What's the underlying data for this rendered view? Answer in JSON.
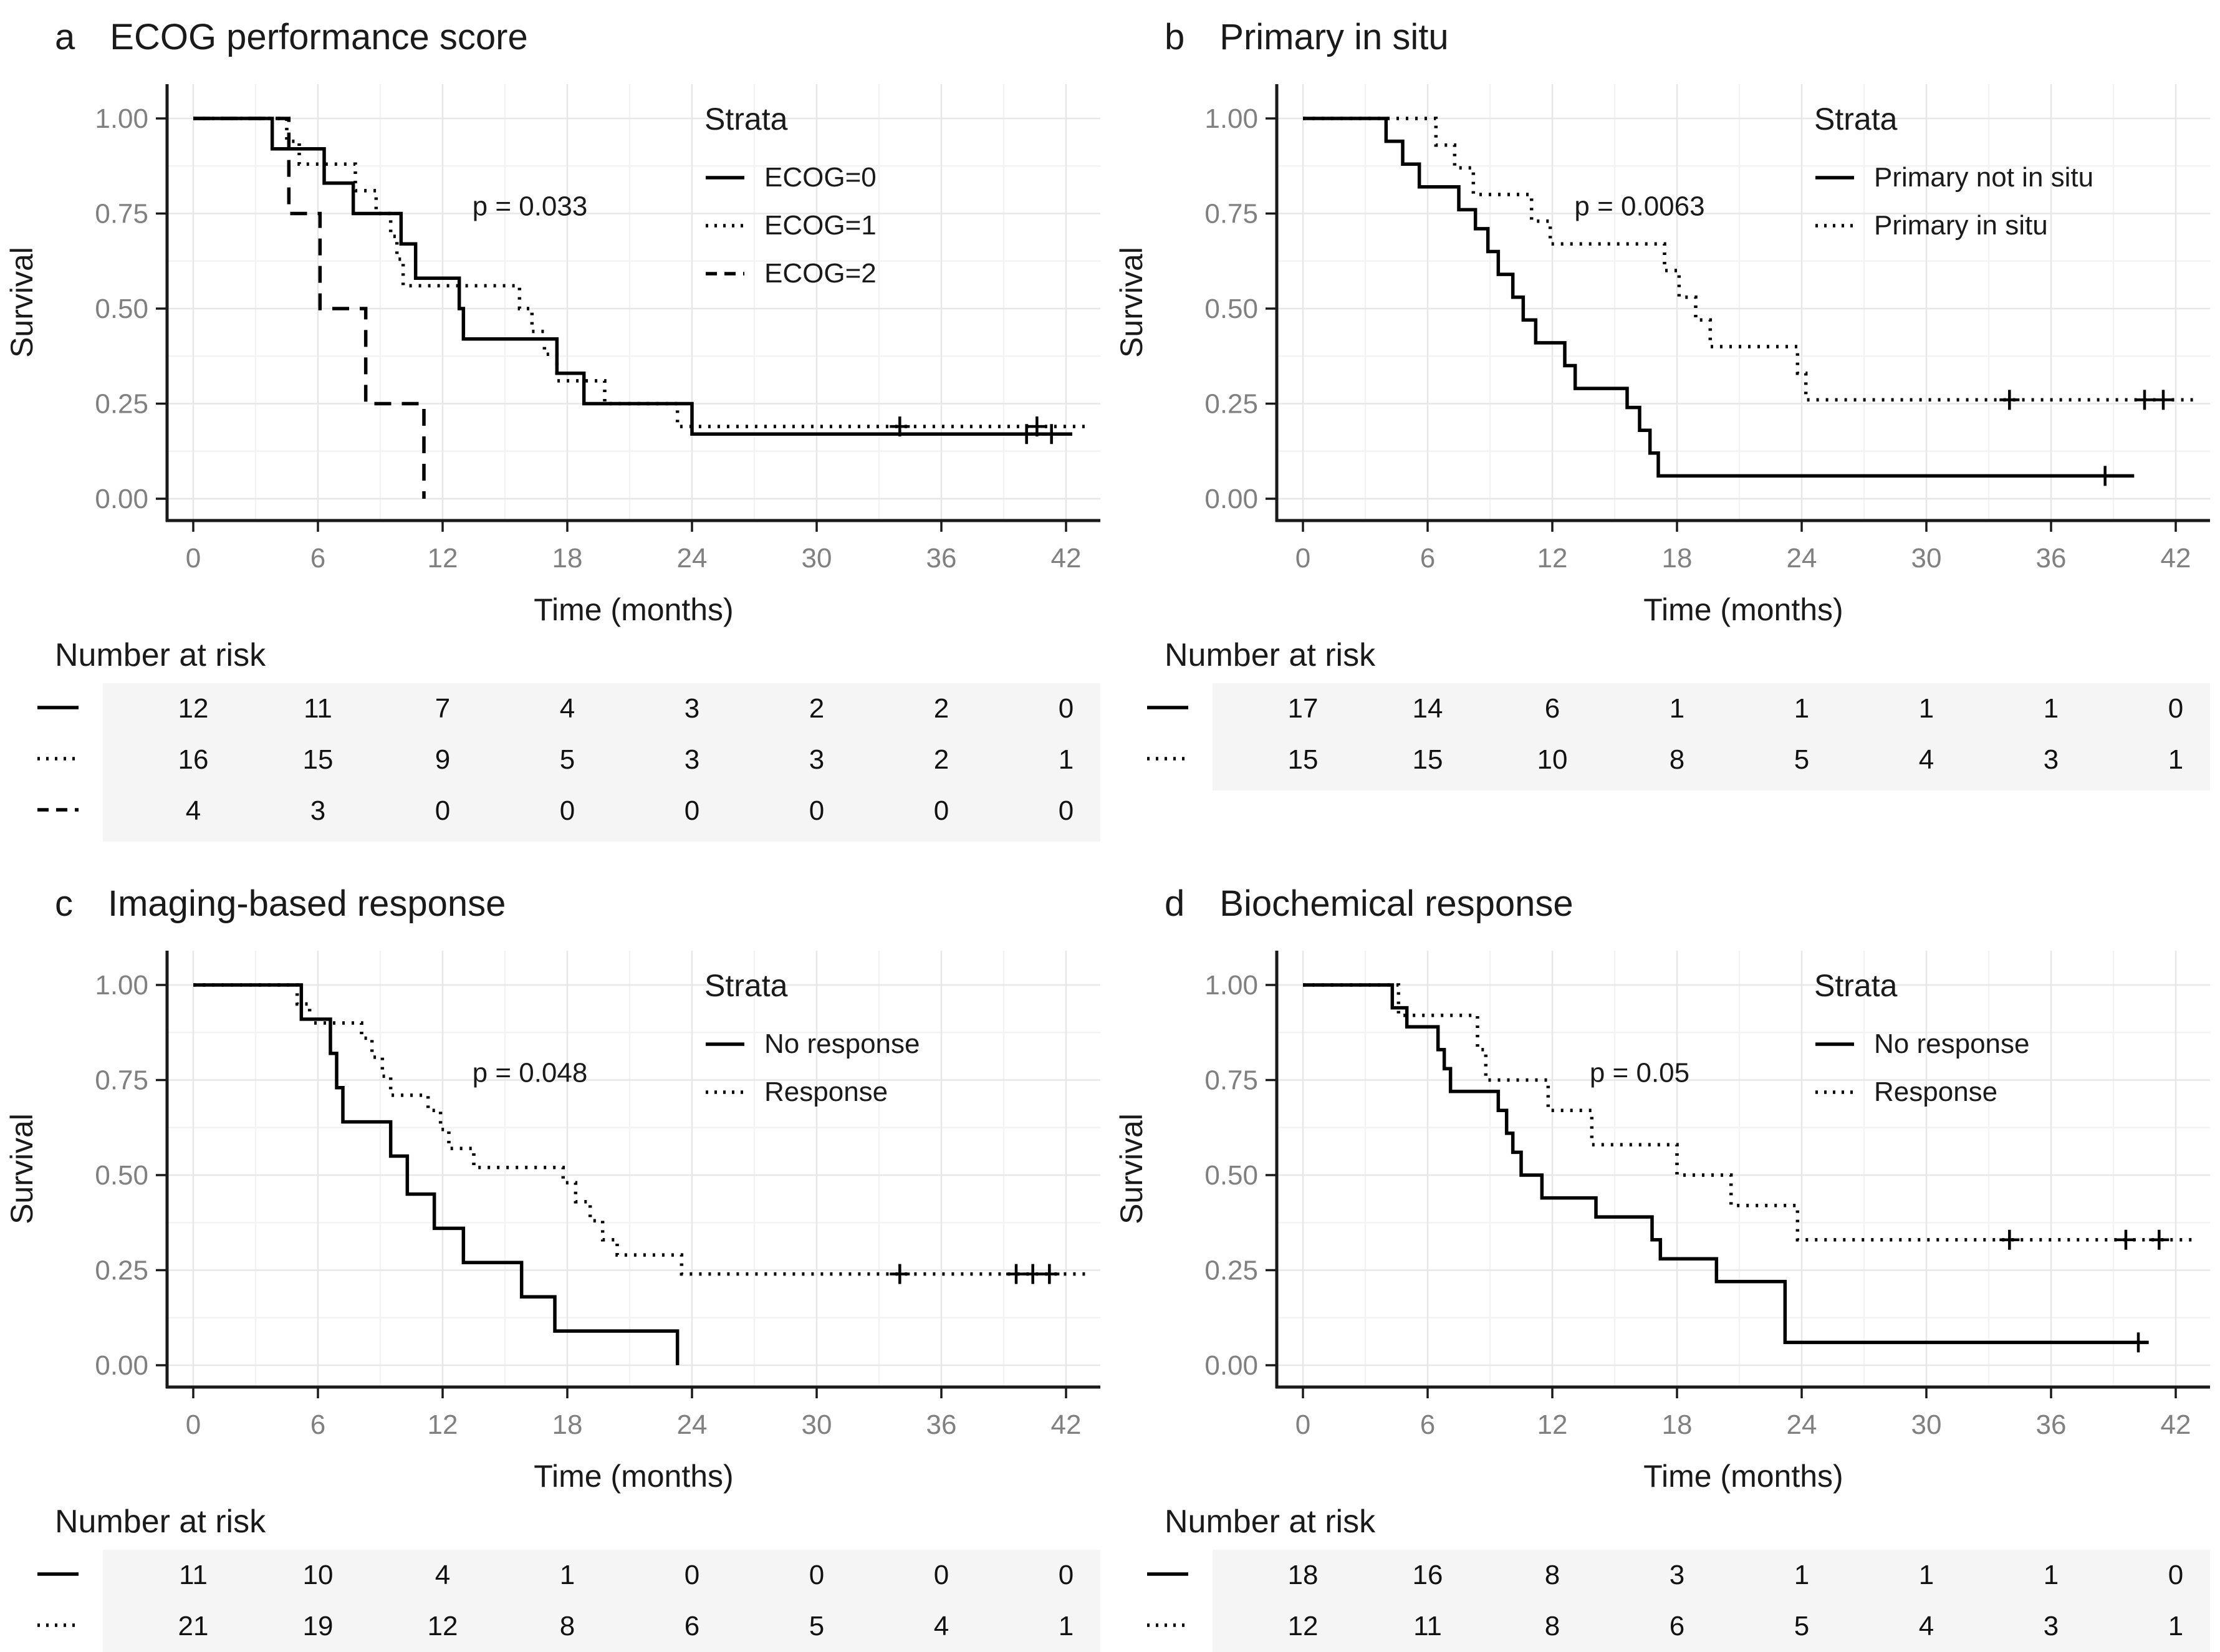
{
  "figure": {
    "y_axis_label": "Survival",
    "x_axis_label": "Time (months)",
    "legend_title": "Strata",
    "risk_header": "Number at risk",
    "x_ticks": [
      0,
      6,
      12,
      18,
      24,
      30,
      36,
      42
    ],
    "y_tick_labels": [
      "1.00",
      "0.75",
      "0.50",
      "0.25",
      "0.00"
    ],
    "y_tick_values": [
      1,
      0.75,
      0.5,
      0.25,
      0
    ],
    "colors": {
      "curve": "#000000",
      "axis": "#1a1a1a",
      "grid_major": "#e7e7e7",
      "grid_minor": "#f3f3f3",
      "tick_label": "#808080",
      "risk_band_bg": "#f5f5f5",
      "text": "#1a1a1a"
    }
  },
  "chart_data": [
    {
      "type": "line",
      "subtype": "kaplan-meier-step",
      "letter": "a",
      "title": "ECOG performance score",
      "p_label": "p = 0.033",
      "xlabel": "Time (months)",
      "ylabel": "Survival",
      "xlim": [
        -1.5,
        43.6
      ],
      "ylim": [
        -0.05,
        1.05
      ],
      "x_ticks": [
        0,
        6,
        12,
        18,
        24,
        30,
        36,
        42
      ],
      "series": [
        {
          "name": "ECOG=0",
          "line": "solid",
          "steps": [
            [
              3.8,
              0.92
            ],
            [
              6.3,
              0.83
            ],
            [
              7.7,
              0.75
            ],
            [
              10.0,
              0.67
            ],
            [
              10.7,
              0.58
            ],
            [
              12.8,
              0.5
            ],
            [
              13.0,
              0.42
            ],
            [
              17.5,
              0.33
            ],
            [
              18.8,
              0.25
            ],
            [
              24.0,
              0.17
            ]
          ],
          "end": 42.3,
          "censors": [
            [
              40.1,
              0.17
            ],
            [
              41.3,
              0.17
            ]
          ],
          "at_risk": [
            12,
            11,
            7,
            4,
            3,
            2,
            2,
            0
          ]
        },
        {
          "name": "ECOG=1",
          "line": "dotted",
          "steps": [
            [
              4.5,
              0.94
            ],
            [
              5.1,
              0.88
            ],
            [
              7.8,
              0.81
            ],
            [
              8.8,
              0.75
            ],
            [
              9.5,
              0.69
            ],
            [
              9.8,
              0.63
            ],
            [
              10.1,
              0.56
            ],
            [
              15.7,
              0.5
            ],
            [
              16.3,
              0.44
            ],
            [
              16.9,
              0.38
            ],
            [
              17.5,
              0.31
            ],
            [
              19.8,
              0.25
            ],
            [
              23.3,
              0.19
            ]
          ],
          "end": 43.0,
          "censors": [
            [
              34.0,
              0.19
            ],
            [
              40.6,
              0.19
            ]
          ],
          "at_risk": [
            16,
            15,
            9,
            5,
            3,
            3,
            2,
            1
          ]
        },
        {
          "name": "ECOG=2",
          "line": "dashed",
          "steps": [
            [
              4.6,
              0.75
            ],
            [
              6.1,
              0.5
            ],
            [
              8.3,
              0.25
            ],
            [
              11.1,
              0.0
            ]
          ],
          "end": 11.1,
          "censors": [],
          "at_risk": [
            4,
            3,
            0,
            0,
            0,
            0,
            0,
            0
          ]
        }
      ]
    },
    {
      "type": "line",
      "subtype": "kaplan-meier-step",
      "letter": "b",
      "title": "Primary in situ",
      "p_label": "p = 0.0063",
      "xlabel": "Time (months)",
      "ylabel": "Survival",
      "xlim": [
        -1.5,
        43.6
      ],
      "ylim": [
        -0.05,
        1.05
      ],
      "x_ticks": [
        0,
        6,
        12,
        18,
        24,
        30,
        36,
        42
      ],
      "series": [
        {
          "name": "Primary not in situ",
          "line": "solid",
          "steps": [
            [
              4.0,
              0.94
            ],
            [
              4.8,
              0.88
            ],
            [
              5.6,
              0.82
            ],
            [
              7.5,
              0.76
            ],
            [
              8.3,
              0.71
            ],
            [
              8.9,
              0.65
            ],
            [
              9.4,
              0.59
            ],
            [
              10.1,
              0.53
            ],
            [
              10.6,
              0.47
            ],
            [
              11.2,
              0.41
            ],
            [
              12.6,
              0.35
            ],
            [
              13.1,
              0.29
            ],
            [
              15.6,
              0.24
            ],
            [
              16.2,
              0.18
            ],
            [
              16.7,
              0.12
            ],
            [
              17.1,
              0.06
            ]
          ],
          "end": 40.0,
          "censors": [
            [
              38.6,
              0.06
            ]
          ],
          "at_risk": [
            17,
            14,
            6,
            1,
            1,
            1,
            1,
            0
          ]
        },
        {
          "name": "Primary in situ",
          "line": "dotted",
          "steps": [
            [
              6.4,
              0.93
            ],
            [
              7.3,
              0.87
            ],
            [
              8.2,
              0.8
            ],
            [
              11.0,
              0.73
            ],
            [
              11.9,
              0.67
            ],
            [
              17.4,
              0.6
            ],
            [
              18.1,
              0.53
            ],
            [
              18.9,
              0.47
            ],
            [
              19.6,
              0.4
            ],
            [
              23.8,
              0.33
            ],
            [
              24.2,
              0.26
            ]
          ],
          "end": 43.0,
          "censors": [
            [
              34.0,
              0.26
            ],
            [
              40.5,
              0.26
            ],
            [
              41.4,
              0.26
            ]
          ],
          "at_risk": [
            15,
            15,
            10,
            8,
            5,
            4,
            3,
            1
          ]
        }
      ]
    },
    {
      "type": "line",
      "subtype": "kaplan-meier-step",
      "letter": "c",
      "title": "Imaging-based response",
      "p_label": "p = 0.048",
      "xlabel": "Time (months)",
      "ylabel": "Survival",
      "xlim": [
        -1.5,
        43.6
      ],
      "ylim": [
        -0.05,
        1.05
      ],
      "x_ticks": [
        0,
        6,
        12,
        18,
        24,
        30,
        36,
        42
      ],
      "series": [
        {
          "name": "No response",
          "line": "solid",
          "steps": [
            [
              5.2,
              0.91
            ],
            [
              6.6,
              0.82
            ],
            [
              6.9,
              0.73
            ],
            [
              7.2,
              0.64
            ],
            [
              9.5,
              0.55
            ],
            [
              10.3,
              0.45
            ],
            [
              11.6,
              0.36
            ],
            [
              13.0,
              0.27
            ],
            [
              15.8,
              0.18
            ],
            [
              17.4,
              0.09
            ],
            [
              23.3,
              0.0
            ]
          ],
          "end": 23.3,
          "censors": [],
          "at_risk": [
            11,
            10,
            4,
            1,
            0,
            0,
            0,
            0
          ]
        },
        {
          "name": "Response",
          "line": "dotted",
          "steps": [
            [
              5.0,
              0.95
            ],
            [
              5.6,
              0.9
            ],
            [
              8.1,
              0.86
            ],
            [
              8.6,
              0.81
            ],
            [
              9.1,
              0.76
            ],
            [
              9.5,
              0.71
            ],
            [
              11.3,
              0.67
            ],
            [
              11.9,
              0.62
            ],
            [
              12.3,
              0.57
            ],
            [
              13.5,
              0.52
            ],
            [
              17.8,
              0.48
            ],
            [
              18.4,
              0.43
            ],
            [
              19.1,
              0.38
            ],
            [
              19.7,
              0.33
            ],
            [
              20.4,
              0.29
            ],
            [
              23.5,
              0.24
            ]
          ],
          "end": 43.0,
          "censors": [
            [
              34.0,
              0.24
            ],
            [
              39.6,
              0.24
            ],
            [
              40.4,
              0.24
            ],
            [
              41.2,
              0.24
            ]
          ],
          "at_risk": [
            21,
            19,
            12,
            8,
            6,
            5,
            4,
            1
          ]
        }
      ]
    },
    {
      "type": "line",
      "subtype": "kaplan-meier-step",
      "letter": "d",
      "title": "Biochemical response",
      "p_label": "p = 0.05",
      "xlabel": "Time (months)",
      "ylabel": "Survival",
      "xlim": [
        -1.5,
        43.6
      ],
      "ylim": [
        -0.05,
        1.05
      ],
      "x_ticks": [
        0,
        6,
        12,
        18,
        24,
        30,
        36,
        42
      ],
      "series": [
        {
          "name": "No response",
          "line": "solid",
          "steps": [
            [
              4.3,
              0.94
            ],
            [
              5.0,
              0.89
            ],
            [
              6.5,
              0.83
            ],
            [
              6.8,
              0.78
            ],
            [
              7.1,
              0.72
            ],
            [
              9.4,
              0.67
            ],
            [
              9.8,
              0.61
            ],
            [
              10.1,
              0.56
            ],
            [
              10.5,
              0.5
            ],
            [
              11.5,
              0.44
            ],
            [
              14.1,
              0.39
            ],
            [
              16.8,
              0.33
            ],
            [
              17.2,
              0.28
            ],
            [
              19.9,
              0.22
            ],
            [
              23.2,
              0.06
            ]
          ],
          "end": 40.7,
          "censors": [
            [
              40.2,
              0.06
            ]
          ],
          "at_risk": [
            18,
            16,
            8,
            3,
            1,
            1,
            1,
            0
          ]
        },
        {
          "name": "Response",
          "line": "dotted",
          "steps": [
            [
              4.6,
              0.92
            ],
            [
              8.4,
              0.83
            ],
            [
              8.8,
              0.75
            ],
            [
              11.8,
              0.67
            ],
            [
              13.9,
              0.58
            ],
            [
              18.0,
              0.5
            ],
            [
              20.6,
              0.42
            ],
            [
              23.8,
              0.33
            ]
          ],
          "end": 43.0,
          "censors": [
            [
              34.0,
              0.33
            ],
            [
              39.6,
              0.33
            ],
            [
              41.2,
              0.33
            ]
          ],
          "at_risk": [
            12,
            11,
            8,
            6,
            5,
            4,
            3,
            1
          ]
        }
      ]
    }
  ]
}
